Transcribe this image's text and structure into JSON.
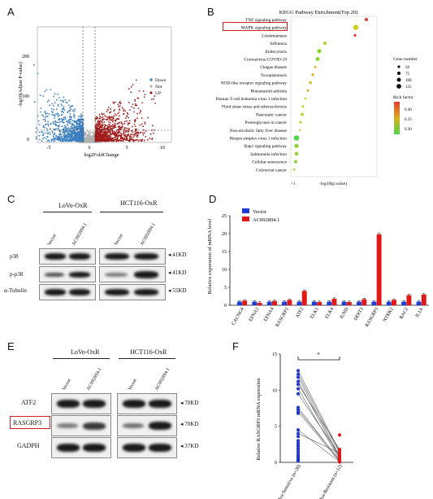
{
  "panels": {
    "A": "A",
    "B": "B",
    "C": "C",
    "D": "D",
    "E": "E",
    "F": "F"
  },
  "volcano": {
    "ylabel": "-log10(Adjust P-value)",
    "xlabel": "log2FoldChange",
    "xticks": [
      "-5",
      "0",
      "5",
      "10"
    ],
    "yticks": [
      "0",
      "100",
      "200"
    ],
    "legend": [
      "Down",
      "Not",
      "UP"
    ],
    "colors": {
      "Down": "#3a7fbf",
      "Not": "#b0b0b0",
      "UP": "#a01c1c"
    }
  },
  "kegg": {
    "title": "KEGG Pathway Enrichment(Top 20)",
    "xlabel": "-log10(p.value)",
    "xtick": ">1",
    "size_legend_title": "Gene number",
    "size_legend": [
      "50",
      "75",
      "100",
      "125"
    ],
    "color_legend_title": "Rich factor",
    "color_legend": [
      "0.40",
      "0.35",
      "0.30"
    ],
    "highlight": "MAPK signaling pathway",
    "pathways": [
      "TNF signaling pathway",
      "MAPK signaling pathway",
      "Leishmaniasis",
      "Influenza",
      "Endocytosis",
      "Coronavirus-COVID-19",
      "Chagas disease",
      "Toxoplasmosis",
      "NOD-like receptor signaling pathway",
      "Rheumatoid arthritis",
      "Human T-cell leukemia virus 1 infection",
      "Fluid shear stress and atherosclerosis",
      "Pancreatic cancer",
      "Proteoglycans in cancer",
      "Non-alcoholic fatty liver disease",
      "Herpes simplex virus 1 infection",
      "Rap1 signaling pathway",
      "Salmonella infection",
      "Cellular senescence",
      "Colorectal cancer"
    ]
  },
  "blotC": {
    "group1": "LoVo-OxR",
    "group2": "HCT116-OxR",
    "lanes": [
      "Vector",
      "AC092894.1",
      "Vector",
      "AC092894.1"
    ],
    "rows": [
      {
        "name": "p38",
        "kd": "41KD"
      },
      {
        "name": "p-p38",
        "kd": "41KD"
      },
      {
        "name": "α-Tubulin",
        "kd": "55KD"
      }
    ]
  },
  "blotE": {
    "group1": "LoVo-OxR",
    "group2": "HCT116-OxR",
    "lanes": [
      "Vector",
      "AC092894.1",
      "Vector",
      "AC092894.1"
    ],
    "rows": [
      {
        "name": "ATF2",
        "kd": "70KD"
      },
      {
        "name": "RASGRP3",
        "kd": "70KD"
      },
      {
        "name": "GADPH",
        "kd": "37KD"
      }
    ]
  },
  "chart_data": [
    {
      "type": "bar",
      "panel": "D",
      "ylabel": "Relative expression of mRNA level",
      "ylim": [
        0,
        25
      ],
      "yticks": [
        0,
        5,
        10,
        15,
        20,
        25
      ],
      "categories": [
        "CACNG4",
        "EFNA2",
        "EFNA4",
        "RASGRP2",
        "ATF2",
        "ELK1",
        "ELK4",
        "JUND",
        "DDIT3",
        "RASGRP3",
        "NTRK2",
        "RAC2",
        "IL1A"
      ],
      "series": [
        {
          "name": "Vector",
          "color": "#1f3bd6",
          "values": [
            1,
            1,
            1,
            1,
            1,
            1,
            1,
            1,
            1,
            1,
            1,
            1,
            1
          ]
        },
        {
          "name": "AC092894.1",
          "color": "#e01818",
          "values": [
            1.3,
            0.7,
            1.2,
            1.5,
            4.0,
            0.9,
            1.8,
            0.9,
            1.7,
            19.8,
            1.5,
            2.8,
            3.0
          ]
        }
      ]
    },
    {
      "type": "scatter",
      "panel": "F",
      "ylabel": "Relative RASGRP3 mRNA expression",
      "ylim": [
        0,
        15
      ],
      "yticks": [
        0,
        5,
        10,
        15
      ],
      "categories": [
        "Oxa-Sensitive (n=28)",
        "Oxa-Resistant (n=12)"
      ],
      "significance": "*",
      "series": [
        {
          "name": "Oxa-Sensitive (n=28)",
          "color": "#1f3bd6",
          "values": [
            12.7,
            12.2,
            11.8,
            11.2,
            10.8,
            10.2,
            9.5,
            7.6,
            7.3,
            7.0,
            6.8,
            4.5,
            4.0,
            3.6,
            3.0,
            2.7,
            2.4,
            2.2,
            1.9,
            1.6,
            1.3,
            1.0,
            0.9,
            0.7,
            0.5,
            0.4,
            0.3,
            0.2
          ]
        },
        {
          "name": "Oxa-Resistant (n=12)",
          "color": "#e01818",
          "values": [
            3.8,
            1.8,
            1.5,
            1.3,
            1.0,
            0.8,
            0.6,
            0.4,
            0.3,
            0.2,
            0.1,
            0.05
          ]
        }
      ]
    }
  ]
}
